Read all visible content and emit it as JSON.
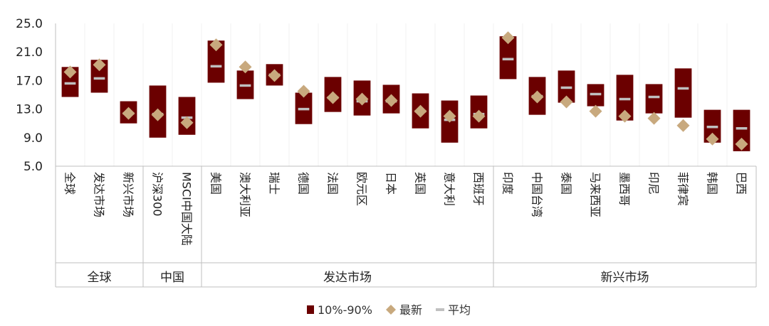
{
  "chart_data": {
    "type": "range-bar",
    "yticks": [
      "5.0",
      "9.0",
      "13.0",
      "17.0",
      "21.0",
      "25.0"
    ],
    "ylim": [
      5,
      25
    ],
    "grid": false,
    "categories": [
      "全球",
      "发达市场",
      "新兴市场",
      "沪深300",
      "MSCI中国大陆",
      "美国",
      "澳大利亚",
      "瑞士",
      "德国",
      "法国",
      "欧元区",
      "日本",
      "英国",
      "意大利",
      "西班牙",
      "印度",
      "中国台湾",
      "泰国",
      "马来西亚",
      "墨西哥",
      "印尼",
      "菲律宾",
      "韩国",
      "巴西"
    ],
    "groups": [
      {
        "label": "全球",
        "start": 0,
        "end": 2
      },
      {
        "label": "中国",
        "start": 3,
        "end": 4
      },
      {
        "label": "发达市场",
        "start": 5,
        "end": 14
      },
      {
        "label": "新兴市场",
        "start": 15,
        "end": 23
      }
    ],
    "series": [
      {
        "name": "10%-90%",
        "low": [
          14.7,
          15.3,
          11.0,
          9.0,
          9.4,
          16.7,
          14.4,
          16.3,
          10.9,
          12.6,
          12.1,
          12.4,
          10.3,
          8.3,
          10.3,
          17.2,
          12.2,
          13.9,
          13.4,
          11.4,
          12.4,
          11.8,
          8.3,
          7.1
        ],
        "high": [
          18.9,
          19.9,
          14.1,
          16.3,
          14.7,
          22.6,
          18.4,
          19.3,
          15.3,
          17.5,
          17.0,
          16.4,
          15.2,
          14.2,
          14.9,
          23.2,
          17.5,
          18.4,
          16.5,
          17.8,
          16.5,
          18.7,
          12.9,
          12.9
        ]
      },
      {
        "name": "最新",
        "values": [
          18.2,
          19.2,
          12.4,
          12.2,
          11.1,
          22.0,
          18.9,
          17.7,
          15.5,
          14.6,
          14.4,
          14.2,
          12.7,
          12.0,
          12.0,
          23.0,
          14.7,
          14.0,
          12.7,
          12.0,
          11.7,
          10.7,
          8.8,
          8.1
        ]
      },
      {
        "name": "平均",
        "values": [
          16.6,
          17.3,
          12.4,
          12.3,
          11.8,
          19.0,
          16.3,
          17.8,
          13.0,
          14.6,
          14.1,
          14.1,
          12.7,
          11.5,
          12.3,
          20.0,
          14.8,
          16.0,
          15.1,
          14.4,
          14.7,
          15.9,
          10.5,
          10.3
        ]
      }
    ],
    "colors": {
      "band": "#6b0000",
      "latest": "#c8a97e",
      "average": "#c0c0c0",
      "axis": "#bfbfbf"
    },
    "legend_position": "bottom"
  }
}
